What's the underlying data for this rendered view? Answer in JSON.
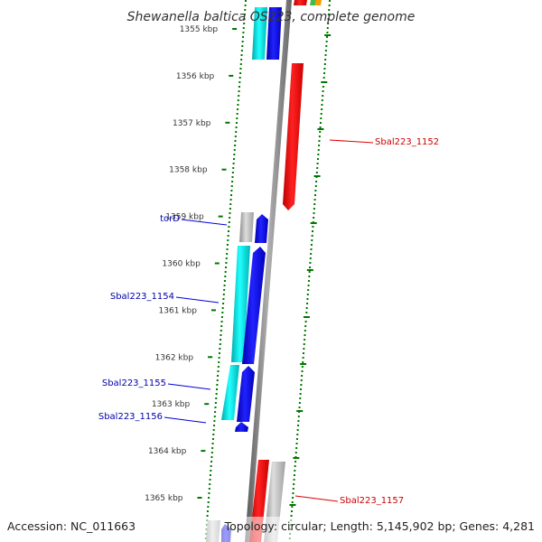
{
  "title": "Shewanella baltica OS223, complete genome",
  "footer": {
    "accession": "Accession: NC_011663",
    "summary": "Topology: circular; Length: 5,145,902 bp; Genes: 4,281"
  },
  "colors": {
    "forward_gene": "#0000ee",
    "reverse_gene": "#ee0000",
    "forward_label": "#0000aa",
    "reverse_label": "#cc0000",
    "cds_cyan": "#00c8c8",
    "grey_feature": "#b0b0b0",
    "backbone": "#808080",
    "gc_dots": "#007700"
  },
  "ticks": [
    {
      "kbp": 1355,
      "label": "1355 kbp"
    },
    {
      "kbp": 1356,
      "label": "1356 kbp"
    },
    {
      "kbp": 1357,
      "label": "1357 kbp"
    },
    {
      "kbp": 1358,
      "label": "1358 kbp"
    },
    {
      "kbp": 1359,
      "label": "1359 kbp"
    },
    {
      "kbp": 1360,
      "label": "1360 kbp"
    },
    {
      "kbp": 1361,
      "label": "1361 kbp"
    },
    {
      "kbp": 1362,
      "label": "1362 kbp"
    },
    {
      "kbp": 1363,
      "label": "1363 kbp"
    },
    {
      "kbp": 1364,
      "label": "1364 kbp"
    },
    {
      "kbp": 1365,
      "label": "1365 kbp"
    }
  ],
  "gene_labels": [
    {
      "name": "torD",
      "strand": "forward"
    },
    {
      "name": "Sbal223_1154",
      "strand": "forward"
    },
    {
      "name": "Sbal223_1155",
      "strand": "forward"
    },
    {
      "name": "Sbal223_1156",
      "strand": "forward"
    },
    {
      "name": "Sbal223_1152",
      "strand": "reverse"
    },
    {
      "name": "Sbal223_1157",
      "strand": "reverse"
    }
  ]
}
